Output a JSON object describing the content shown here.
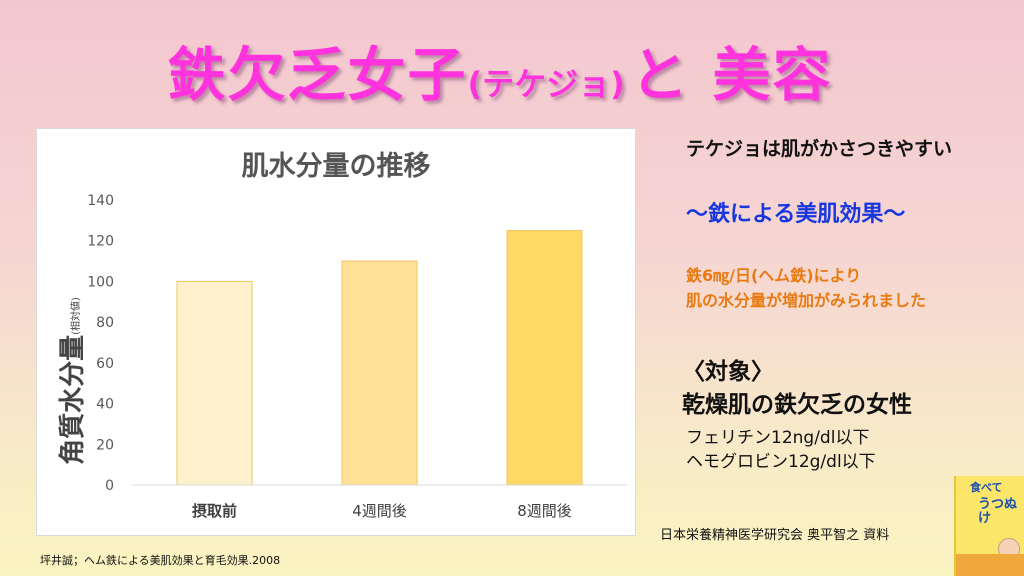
{
  "title": {
    "main_a": "鉄欠乏女子",
    "paren": "(テケジョ)",
    "main_b": "と 美容"
  },
  "chart_data": {
    "type": "bar",
    "title": "肌水分量の推移",
    "ylabel": "角質水分量",
    "ylabel_sub": "(相対値)",
    "xlabel": "",
    "categories": [
      "摂取前",
      "4週間後",
      "8週間後"
    ],
    "values": [
      100,
      110,
      125
    ],
    "ylim": [
      0,
      140
    ],
    "yticks": [
      0,
      20,
      40,
      60,
      80,
      100,
      120,
      140
    ],
    "grid": false,
    "legend": "none",
    "colors": [
      "#fff1cc",
      "#ffe197",
      "#ffd966"
    ],
    "bar_stroke": "#f2c460"
  },
  "side": {
    "line1": "テケジョは肌がかさつきやすい",
    "line2": "〜鉄による美肌効果〜",
    "line3a": "鉄6㎎/日(ヘム鉄)により",
    "line3b": "肌の水分量が増加がみられました",
    "target_heading": "〈対象〉",
    "target_main": "乾燥肌の鉄欠乏の女性",
    "criteria1": "フェリチン12ng/dl以下",
    "criteria2": "ヘモグロビン12g/dl以下"
  },
  "org_credit": "日本栄養精神医学研究会 奥平智之 資料",
  "citation": "坪井誠；ヘム鉄による美肌効果と育毛効果.2008",
  "book": {
    "text1": "食べて",
    "text2": "うつぬけ"
  }
}
